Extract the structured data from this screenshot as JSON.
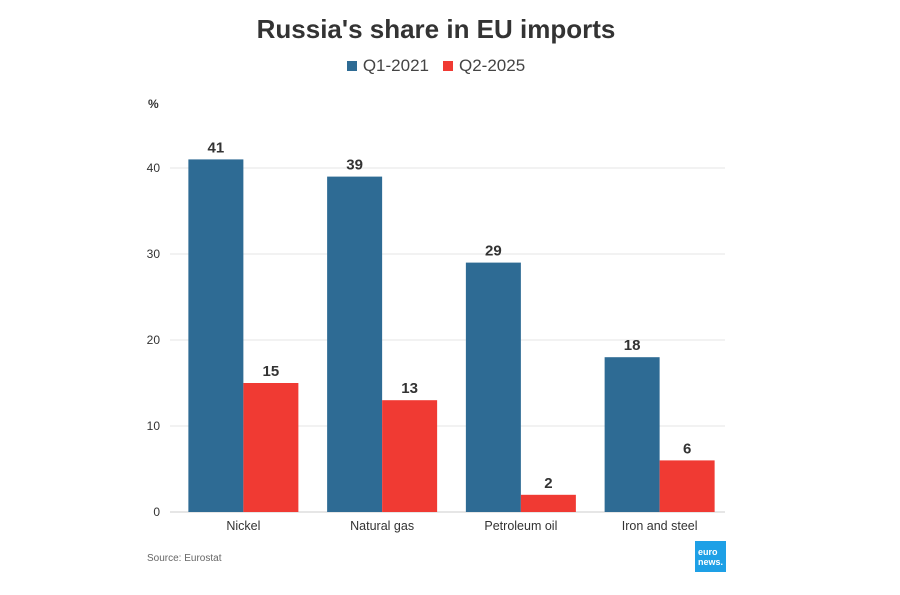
{
  "chart_data": {
    "type": "bar",
    "title": "Russia's share in EU imports",
    "ylabel": "%",
    "xlabel": "",
    "categories": [
      "Nickel",
      "Natural gas",
      "Petroleum oil",
      "Iron and steel"
    ],
    "series": [
      {
        "name": "Q1-2021",
        "values": [
          41,
          39,
          29,
          18
        ],
        "value_labels": [
          "41",
          "39",
          "29",
          "18"
        ],
        "color": "#2e6b94"
      },
      {
        "name": "Q2-2025",
        "values": [
          15,
          13,
          2,
          6
        ],
        "value_labels": [
          "15",
          "13",
          "2",
          "6"
        ],
        "color": "#f03a33"
      }
    ],
    "ylim": [
      0,
      45
    ],
    "yticks": [
      0,
      10,
      20,
      30,
      40
    ],
    "ytick_labels": [
      "0",
      "10",
      "20",
      "30",
      "40"
    ],
    "grid": true,
    "legend": "top-center"
  },
  "footer": {
    "source": "Source: Eurostat",
    "logo_line1": "euro",
    "logo_line2": "news."
  }
}
